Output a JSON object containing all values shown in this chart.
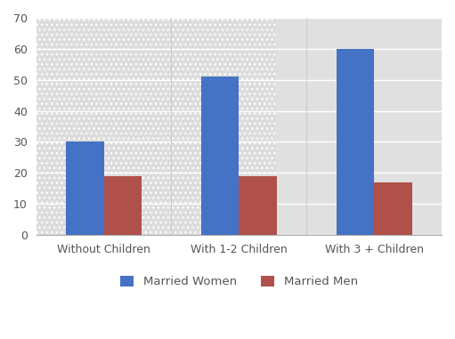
{
  "categories": [
    "Without Children",
    "With 1-2 Children",
    "With 3 + Children"
  ],
  "married_women": [
    30,
    51,
    60
  ],
  "married_men": [
    19,
    19,
    17
  ],
  "color_women": "#4472C4",
  "color_men": "#B0504A",
  "legend_labels": [
    "Married Women",
    "Married Men"
  ],
  "ylim": [
    0,
    70
  ],
  "yticks": [
    0,
    10,
    20,
    30,
    40,
    50,
    60,
    70
  ],
  "bar_width": 0.28,
  "background_color": "#FFFFFF",
  "plot_bg_color": "#E8E8E8",
  "grid_color": "#FFFFFF",
  "vline_color": "#CCCCCC"
}
